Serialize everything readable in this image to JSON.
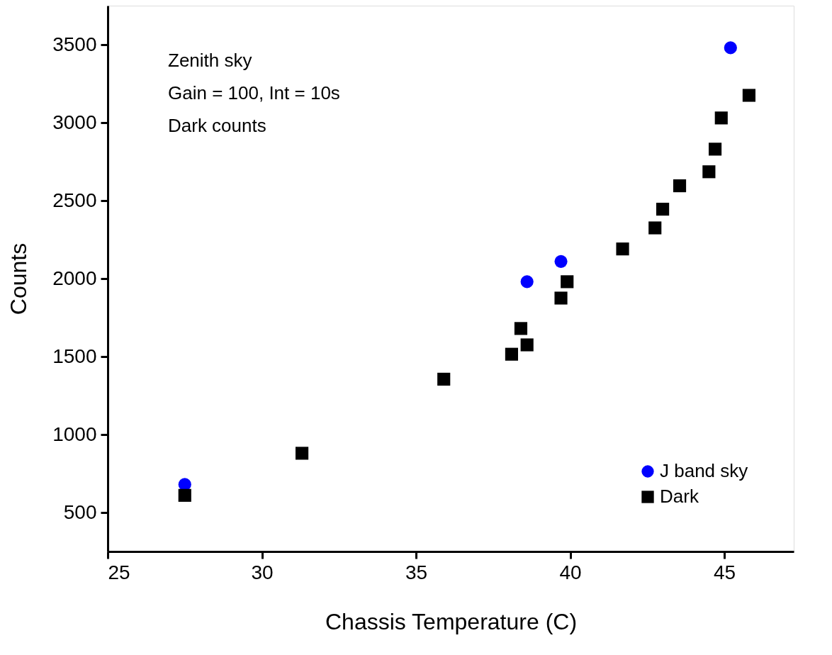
{
  "chart_data": {
    "type": "scatter",
    "xlabel": "Chassis Temperature (C)",
    "ylabel": "Counts",
    "xlim": [
      25,
      47.25
    ],
    "xticks": [
      25,
      30,
      35,
      40,
      45
    ],
    "ylim": [
      250,
      3750
    ],
    "yticks": [
      500,
      1000,
      1500,
      2000,
      2500,
      3000,
      3500
    ],
    "grid": false,
    "legend": "bottom right",
    "annotations": [
      "Zenith sky",
      "Gain = 100, Int = 10s",
      "Dark counts"
    ],
    "series": [
      {
        "name": "J band sky",
        "color": "#0000ff",
        "marker": "circle",
        "x": [
          27.5,
          38.6,
          39.7,
          45.2
        ],
        "values": [
          680,
          1980,
          2110,
          3480
        ]
      },
      {
        "name": "Dark",
        "color": "#000000",
        "marker": "square",
        "x": [
          27.5,
          31.3,
          35.9,
          38.1,
          38.4,
          38.6,
          39.7,
          39.9,
          41.7,
          42.75,
          43.0,
          43.55,
          44.5,
          44.7,
          44.9,
          45.8
        ],
        "values": [
          610,
          880,
          1355,
          1515,
          1680,
          1575,
          1875,
          1980,
          2190,
          2325,
          2445,
          2595,
          2685,
          2830,
          3030,
          3175
        ]
      }
    ]
  }
}
